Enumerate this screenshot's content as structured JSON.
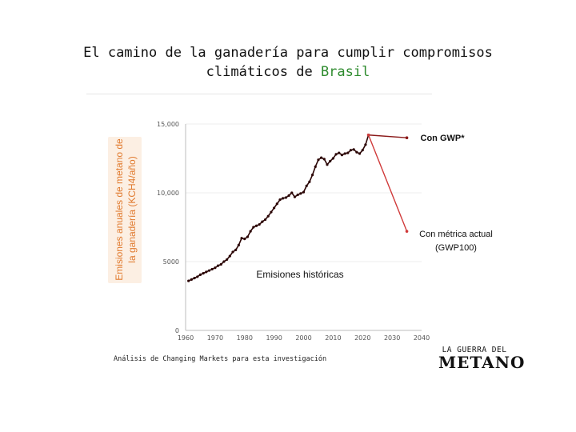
{
  "title": {
    "line1": "El camino de la ganadería para cumplir compromisos",
    "line2_prefix": "climáticos de ",
    "line2_highlight": "Brasil"
  },
  "source_note": "Análisis de Changing Markets para esta investigación",
  "logo": {
    "line1": "LA GUERRA DEL",
    "line2": "METANO"
  },
  "colors": {
    "historic": "#2b0505",
    "gwp_star": "#8b1a1a",
    "gwp100": "#d03a3a",
    "ylabel": "#e07a2e",
    "title_highlight": "#2e8b2e"
  },
  "chart_data": {
    "type": "line",
    "ylabel": "Emisiones anuales de metano de la ganadería (KCH4/año)",
    "xlim": [
      1960,
      2040
    ],
    "ylim": [
      0,
      15000
    ],
    "x_ticks": [
      "1960",
      "1970",
      "1980",
      "1990",
      "2000",
      "2010",
      "2020",
      "2030",
      "2040"
    ],
    "y_ticks": [
      {
        "value": 0,
        "label": "0"
      },
      {
        "value": 5000,
        "label": "5000"
      },
      {
        "value": 10000,
        "label": "10,000"
      },
      {
        "value": 15000,
        "label": "15,000"
      }
    ],
    "annotations": {
      "historic": "Emisiones históricas",
      "gwp_star": "Con GWP*",
      "gwp100_line1": "Con métrica actual",
      "gwp100_line2": "(GWP100)"
    },
    "series": [
      {
        "name": "Emisiones históricas",
        "x": [
          1961,
          1962,
          1963,
          1964,
          1965,
          1966,
          1967,
          1968,
          1969,
          1970,
          1971,
          1972,
          1973,
          1974,
          1975,
          1976,
          1977,
          1978,
          1979,
          1980,
          1981,
          1982,
          1983,
          1984,
          1985,
          1986,
          1987,
          1988,
          1989,
          1990,
          1991,
          1992,
          1993,
          1994,
          1995,
          1996,
          1997,
          1998,
          1999,
          2000,
          2001,
          2002,
          2003,
          2004,
          2005,
          2006,
          2007,
          2008,
          2009,
          2010,
          2011,
          2012,
          2013,
          2014,
          2015,
          2016,
          2017,
          2018,
          2019,
          2020,
          2021,
          2022
        ],
        "y": [
          3600,
          3700,
          3800,
          3900,
          4050,
          4150,
          4250,
          4350,
          4450,
          4550,
          4700,
          4800,
          5000,
          5150,
          5400,
          5700,
          5850,
          6200,
          6700,
          6650,
          6800,
          7200,
          7500,
          7600,
          7700,
          7900,
          8050,
          8300,
          8600,
          8900,
          9200,
          9500,
          9600,
          9650,
          9800,
          10000,
          9700,
          9850,
          9950,
          10050,
          10500,
          10800,
          11300,
          11900,
          12400,
          12550,
          12450,
          12050,
          12300,
          12500,
          12800,
          12900,
          12750,
          12850,
          12900,
          13100,
          13150,
          12950,
          12850,
          13100,
          13500,
          14200
        ]
      },
      {
        "name": "Con GWP*",
        "x": [
          2022,
          2035
        ],
        "y": [
          14200,
          14000
        ]
      },
      {
        "name": "Con métrica actual (GWP100)",
        "x": [
          2022,
          2035
        ],
        "y": [
          14200,
          7200
        ]
      }
    ]
  }
}
